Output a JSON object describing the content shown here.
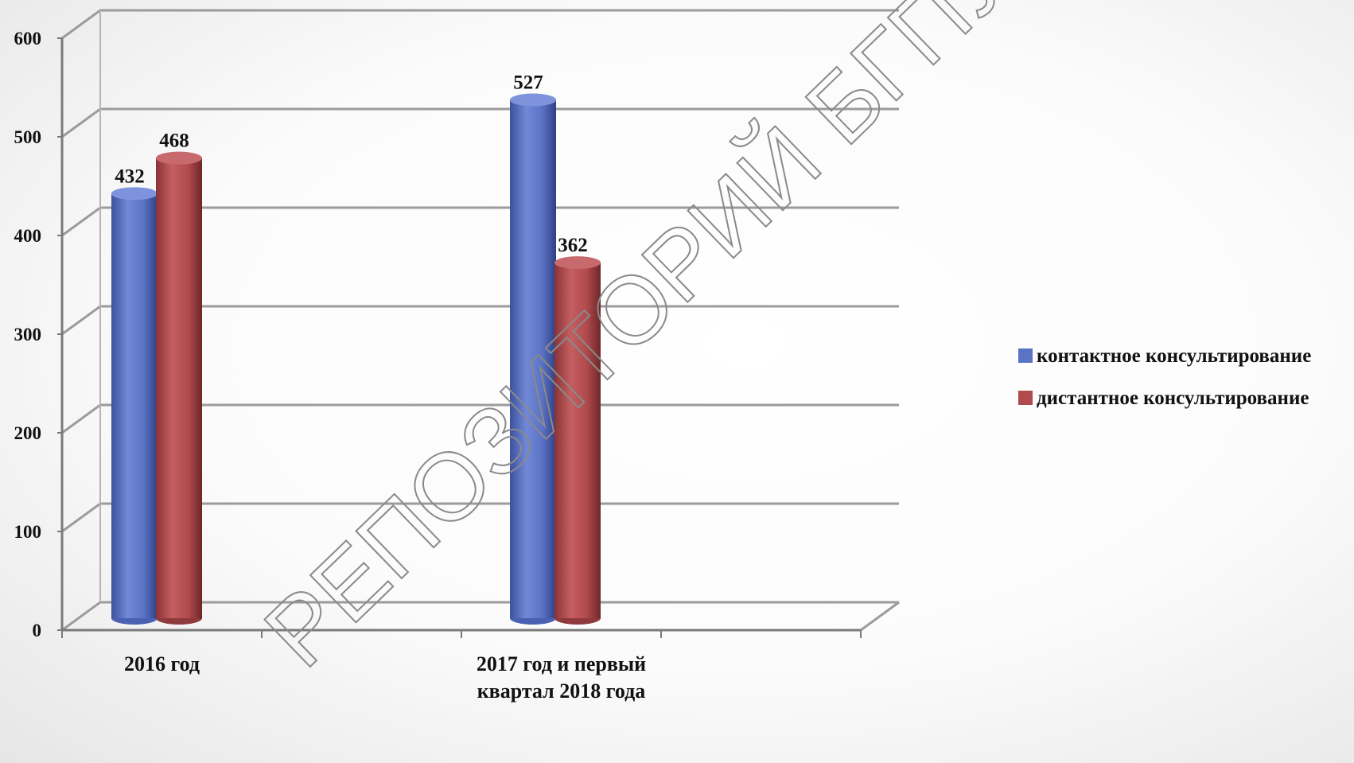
{
  "watermark": "РЕПОЗИТОРИЙ БГПУ",
  "chart_data": {
    "type": "bar",
    "style": "3d-cylinder",
    "categories": [
      "2016 год",
      "2017 год и первый квартал 2018 года"
    ],
    "category_lines": [
      [
        "2016 год"
      ],
      [
        "2017 год и первый",
        "квартал 2018 года"
      ]
    ],
    "series": [
      {
        "name": "контактное консультирование",
        "values": [
          432,
          527
        ],
        "color": "#5b73c4"
      },
      {
        "name": "дистантное консультирование",
        "values": [
          468,
          362
        ],
        "color": "#b04a4d"
      }
    ],
    "data_labels": [
      [
        "432",
        "527"
      ],
      [
        "468",
        "362"
      ]
    ],
    "ylim": [
      0,
      600
    ],
    "yticks": [
      0,
      100,
      200,
      300,
      400,
      500,
      600
    ],
    "ytick_labels": [
      "0",
      "100",
      "200",
      "300",
      "400",
      "500",
      "600"
    ],
    "grid": true,
    "legend_position": "right"
  }
}
